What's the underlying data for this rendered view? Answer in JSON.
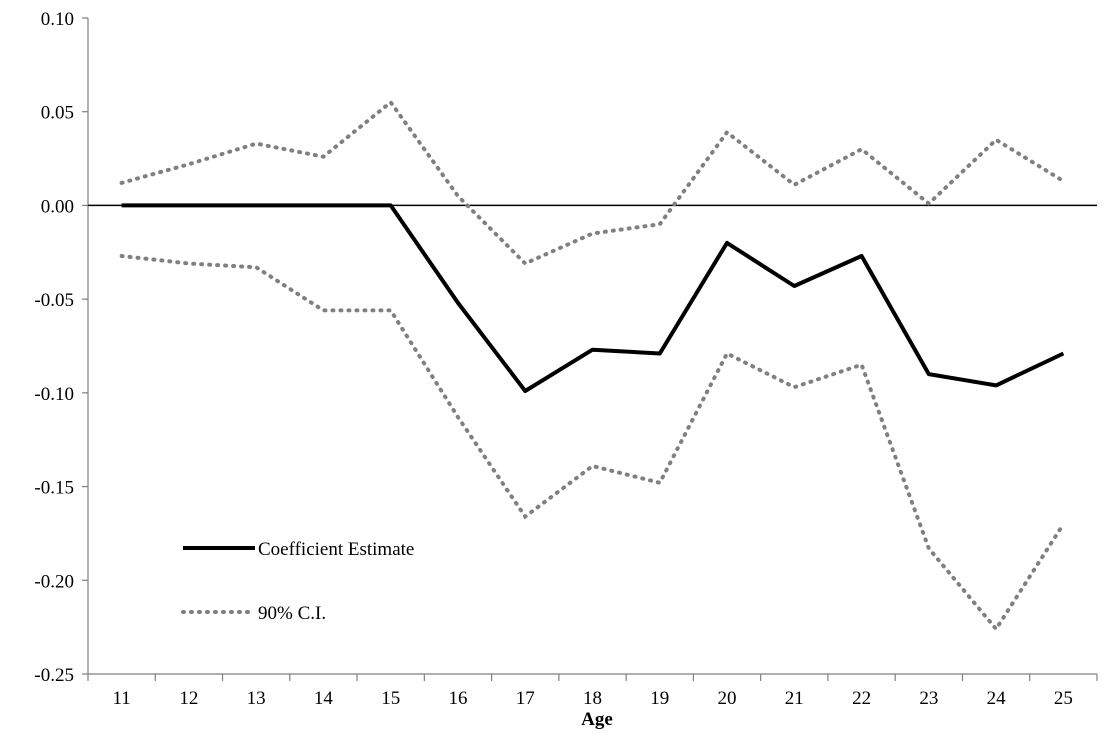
{
  "chart_data": {
    "type": "line",
    "title": "",
    "xlabel": "Age",
    "ylabel": "",
    "x": [
      11,
      12,
      13,
      14,
      15,
      16,
      17,
      18,
      19,
      20,
      21,
      22,
      23,
      24,
      25
    ],
    "xtick_labels": [
      "11",
      "12",
      "13",
      "14",
      "15",
      "16",
      "17",
      "18",
      "19",
      "20",
      "21",
      "22",
      "23",
      "24",
      "25"
    ],
    "ylim": [
      -0.25,
      0.1
    ],
    "yticks": [
      0.1,
      0.05,
      0.0,
      -0.05,
      -0.1,
      -0.15,
      -0.2,
      -0.25
    ],
    "ytick_labels": [
      "0.10",
      "0.05",
      "0.00",
      "-0.05",
      "-0.10",
      "-0.15",
      "-0.20",
      "-0.25"
    ],
    "grid": false,
    "zero_line": true,
    "legend_position": "bottom-left",
    "series": [
      {
        "name": "Coefficient Estimate",
        "style": "solid",
        "color": "#000000",
        "values": [
          0.0,
          0.0,
          0.0,
          0.0,
          0.0,
          -0.052,
          -0.099,
          -0.077,
          -0.079,
          -0.02,
          -0.043,
          -0.027,
          -0.09,
          -0.096,
          -0.079
        ]
      },
      {
        "name": "90% C.I.",
        "style": "dotted",
        "color": "#808080",
        "values": [
          0.012,
          0.022,
          0.033,
          0.026,
          0.055,
          0.005,
          -0.031,
          -0.015,
          -0.01,
          0.039,
          0.011,
          0.03,
          0.001,
          0.035,
          0.013
        ]
      },
      {
        "name": "",
        "style": "dotted",
        "color": "#808080",
        "values": [
          -0.027,
          -0.031,
          -0.033,
          -0.056,
          -0.056,
          -0.113,
          -0.166,
          -0.139,
          -0.148,
          -0.079,
          -0.097,
          -0.085,
          -0.183,
          -0.226,
          -0.17
        ]
      }
    ],
    "legend": [
      {
        "label": "Coefficient Estimate",
        "style": "solid"
      },
      {
        "label": "90% C.I.",
        "style": "dotted"
      }
    ]
  }
}
